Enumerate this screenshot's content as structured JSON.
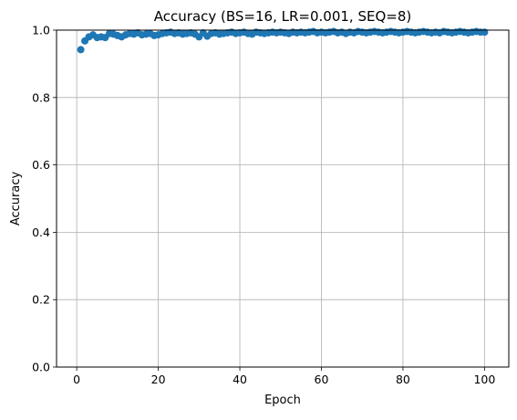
{
  "chart_data": {
    "type": "scatter",
    "title": "Accuracy (BS=16, LR=0.001, SEQ=8)",
    "xlabel": "Epoch",
    "ylabel": "Accuracy",
    "xlim": [
      -4.95,
      105.95
    ],
    "ylim": [
      0.0,
      1.0
    ],
    "xticks": [
      0,
      20,
      40,
      60,
      80,
      100
    ],
    "xtick_labels": [
      "0",
      "20",
      "40",
      "60",
      "80",
      "100"
    ],
    "yticks": [
      0.0,
      0.2,
      0.4,
      0.6,
      0.8,
      1.0
    ],
    "ytick_labels": [
      "0.0",
      "0.2",
      "0.4",
      "0.6",
      "0.8",
      "1.0"
    ],
    "grid": true,
    "legend": "none",
    "series": [
      {
        "color": "#1f77b4",
        "marker": "circle",
        "x": [
          1,
          2,
          3,
          4,
          5,
          6,
          7,
          8,
          9,
          10,
          11,
          12,
          13,
          14,
          15,
          16,
          17,
          18,
          19,
          20,
          21,
          22,
          23,
          24,
          25,
          26,
          27,
          28,
          29,
          30,
          31,
          32,
          33,
          34,
          35,
          36,
          37,
          38,
          39,
          40,
          41,
          42,
          43,
          44,
          45,
          46,
          47,
          48,
          49,
          50,
          51,
          52,
          53,
          54,
          55,
          56,
          57,
          58,
          59,
          60,
          61,
          62,
          63,
          64,
          65,
          66,
          67,
          68,
          69,
          70,
          71,
          72,
          73,
          74,
          75,
          76,
          77,
          78,
          79,
          80,
          81,
          82,
          83,
          84,
          85,
          86,
          87,
          88,
          89,
          90,
          91,
          92,
          93,
          94,
          95,
          96,
          97,
          98,
          99,
          100
        ],
        "y": [
          0.942,
          0.968,
          0.98,
          0.986,
          0.978,
          0.98,
          0.978,
          0.99,
          0.988,
          0.984,
          0.98,
          0.986,
          0.99,
          0.988,
          0.992,
          0.986,
          0.988,
          0.99,
          0.984,
          0.986,
          0.99,
          0.992,
          0.994,
          0.99,
          0.992,
          0.988,
          0.99,
          0.992,
          0.988,
          0.98,
          0.992,
          0.982,
          0.99,
          0.992,
          0.988,
          0.99,
          0.992,
          0.994,
          0.99,
          0.992,
          0.994,
          0.99,
          0.988,
          0.994,
          0.992,
          0.99,
          0.992,
          0.994,
          0.992,
          0.994,
          0.992,
          0.99,
          0.994,
          0.992,
          0.994,
          0.992,
          0.994,
          0.996,
          0.992,
          0.994,
          0.992,
          0.994,
          0.996,
          0.992,
          0.994,
          0.99,
          0.994,
          0.992,
          0.996,
          0.994,
          0.992,
          0.994,
          0.996,
          0.994,
          0.992,
          0.994,
          0.996,
          0.994,
          0.992,
          0.994,
          0.996,
          0.994,
          0.992,
          0.994,
          0.996,
          0.994,
          0.992,
          0.994,
          0.992,
          0.996,
          0.994,
          0.992,
          0.994,
          0.996,
          0.994,
          0.992,
          0.994,
          0.996,
          0.994,
          0.994
        ]
      }
    ]
  }
}
